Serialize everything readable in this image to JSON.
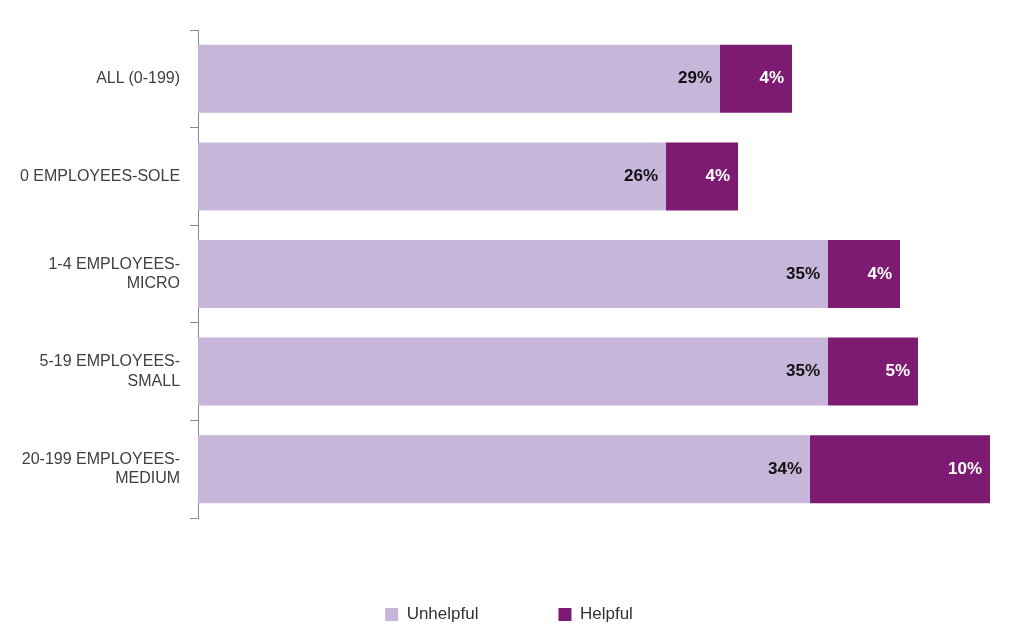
{
  "chart_data": {
    "type": "bar",
    "orientation": "horizontal",
    "stacked": true,
    "relative": false,
    "grid": false,
    "legend": "bottom",
    "categories": [
      "ALL (0-199)",
      "0 EMPLOYEES-SOLE",
      "1-4 EMPLOYEES-MICRO",
      "5-19 EMPLOYEES-SMALL",
      "20-199 EMPLOYEES-MEDIUM"
    ],
    "series": [
      {
        "name": "Unhelpful",
        "color": "#c8b6da",
        "values": [
          29,
          26,
          35,
          35,
          34
        ],
        "value_labels": [
          "29%",
          "26%",
          "35%",
          "35%",
          "34%"
        ]
      },
      {
        "name": "Helpful",
        "color": "#7d1a72",
        "values": [
          4,
          4,
          4,
          5,
          10
        ],
        "value_labels": [
          "4%",
          "4%",
          "4%",
          "5%",
          "10%"
        ]
      }
    ]
  }
}
